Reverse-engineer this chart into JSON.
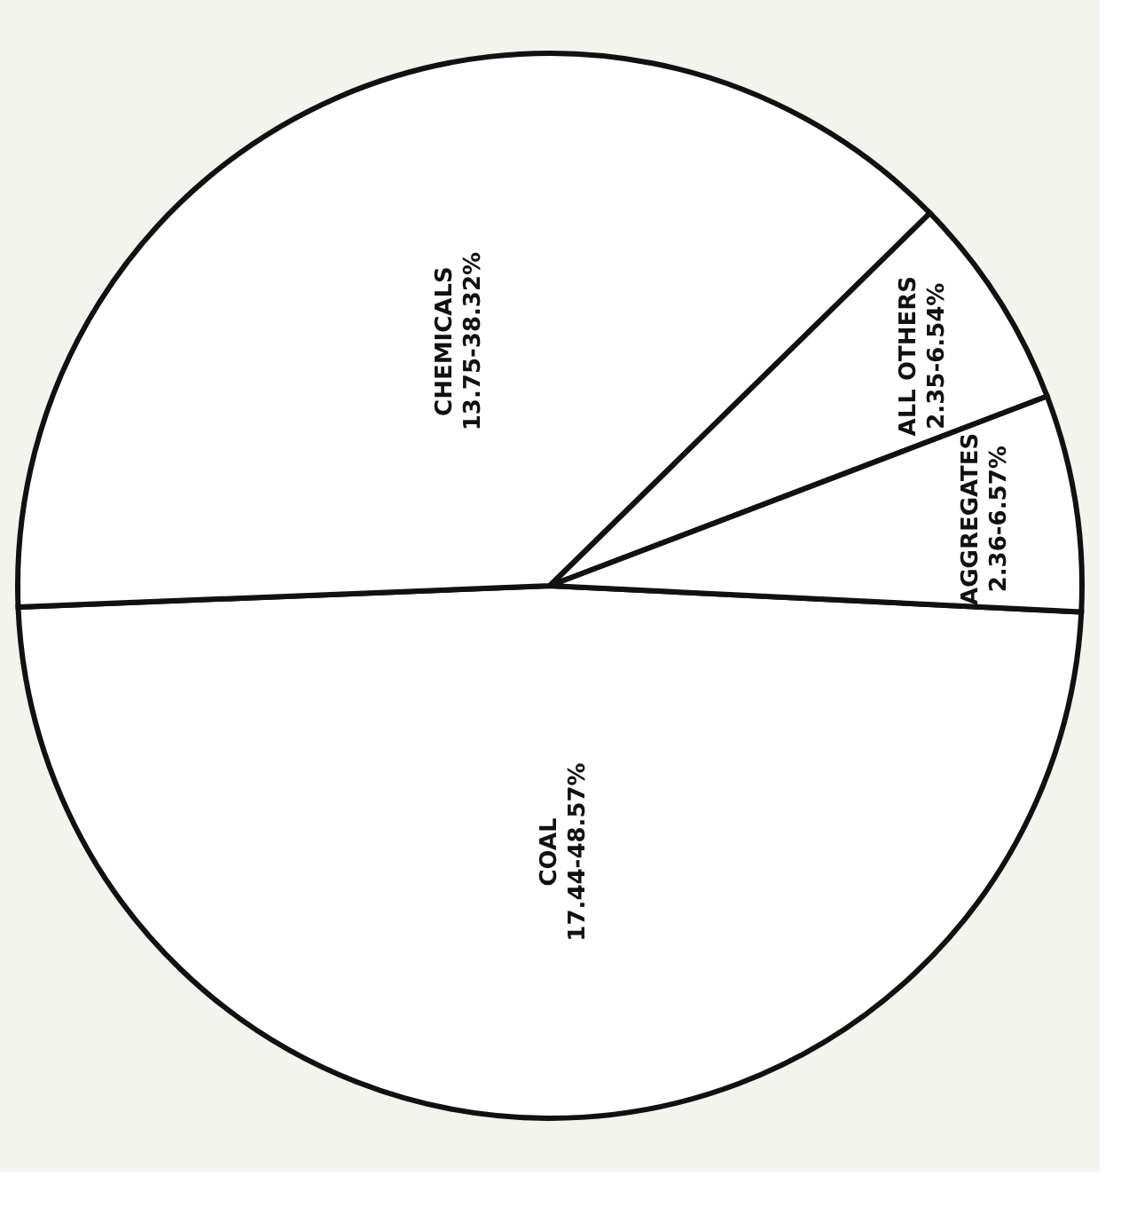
{
  "chart_data": {
    "type": "pie",
    "categories": [
      "COAL",
      "CHEMICALS",
      "ALL OTHERS",
      "AGGREGATES"
    ],
    "values": [
      17.44,
      13.75,
      2.35,
      2.36
    ],
    "value_labels": [
      "17.44-48.57%",
      "13.75-38.32%",
      "2.35-6.54%",
      "2.36-6.57%"
    ],
    "colors": [
      "#ffffff",
      "#ffffff",
      "#ffffff",
      "#ffffff"
    ],
    "legend": false
  }
}
